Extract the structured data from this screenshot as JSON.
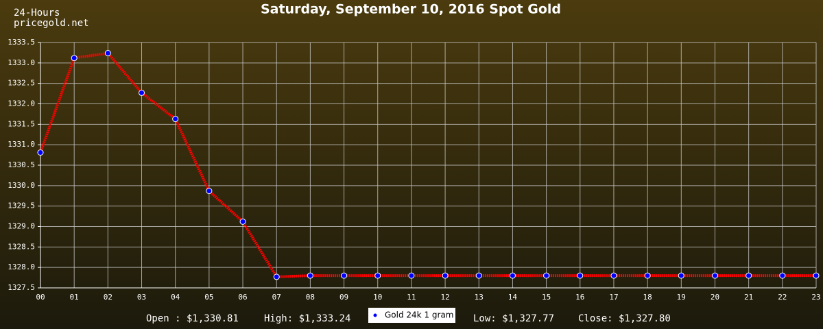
{
  "chart_data": {
    "type": "line",
    "title": "Saturday, September 10, 2016 Spot Gold",
    "corner_text": [
      "24-Hours",
      "pricegold.net"
    ],
    "summary": [
      "Open : $1,330.81",
      "High: $1,333.24",
      "Low: $1,327.77",
      "Close: $1,327.80"
    ],
    "categories": [
      "00",
      "01",
      "02",
      "03",
      "04",
      "05",
      "06",
      "07",
      "08",
      "09",
      "10",
      "11",
      "12",
      "13",
      "14",
      "15",
      "16",
      "17",
      "18",
      "19",
      "20",
      "21",
      "22",
      "23"
    ],
    "series": [
      {
        "name": "Gold 24k 1 gram",
        "color": "#ff0000",
        "marker_color": "#0000ff",
        "values": [
          1330.81,
          1333.12,
          1333.24,
          1332.27,
          1331.63,
          1329.87,
          1329.12,
          1327.77,
          1327.8,
          1327.8,
          1327.8,
          1327.8,
          1327.8,
          1327.8,
          1327.8,
          1327.8,
          1327.8,
          1327.8,
          1327.8,
          1327.8,
          1327.8,
          1327.8,
          1327.8,
          1327.8
        ]
      }
    ],
    "ylim": [
      1327.5,
      1333.5
    ],
    "yticks": [
      1327.5,
      {
        "value": 1328,
        "label": "1328.0"
      },
      1328.5,
      {
        "value": 1329,
        "label": "1329.0"
      },
      1329.5,
      {
        "value": 1330,
        "label": "1330.0"
      },
      1330.5,
      {
        "value": 1331,
        "label": "1331.0"
      },
      1331.5,
      {
        "value": 1332,
        "label": "1332.0"
      },
      1332.5,
      {
        "value": 1333,
        "label": "1333.0"
      },
      1333.5
    ],
    "grid": true
  }
}
